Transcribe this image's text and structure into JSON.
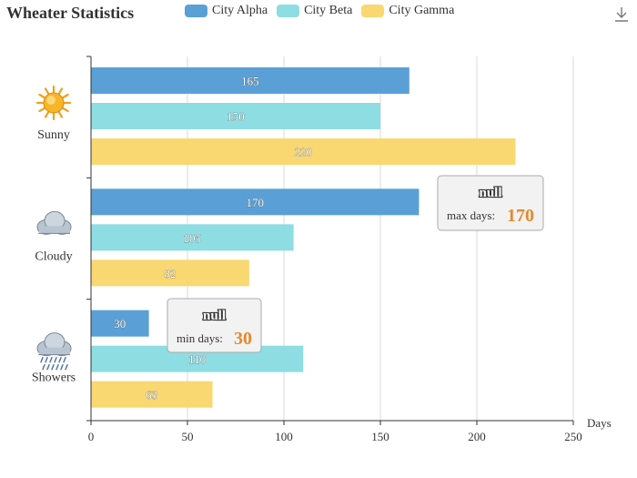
{
  "title": "Wheater Statistics",
  "toolbar": {
    "download_icon": "download-icon"
  },
  "legend": [
    {
      "name": "City Alpha",
      "color": "#5aa0d6"
    },
    {
      "name": "City Beta",
      "color": "#8ddde3"
    },
    {
      "name": "City Gamma",
      "color": "#f9d872"
    }
  ],
  "chart_data": {
    "type": "bar",
    "orientation": "horizontal",
    "categories": [
      "Sunny",
      "Cloudy",
      "Showers"
    ],
    "category_icons": [
      "sun-icon",
      "cloud-icon",
      "showers-icon"
    ],
    "series": [
      {
        "name": "City Alpha",
        "values": [
          165,
          170,
          30
        ]
      },
      {
        "name": "City Beta",
        "values": [
          150,
          105,
          110
        ]
      },
      {
        "name": "City Gamma",
        "values": [
          220,
          82,
          63
        ]
      }
    ],
    "xlabel": "Days",
    "xlim": [
      0,
      250
    ],
    "xticks": [
      0,
      50,
      100,
      150,
      200,
      250
    ],
    "grid": true,
    "legend_position": "top",
    "markers": [
      {
        "title": "null",
        "label": "max days:",
        "value": 170,
        "series": "City Alpha",
        "category": "Cloudy"
      },
      {
        "title": "null",
        "label": "min days:",
        "value": 30,
        "series": "City Alpha",
        "category": "Showers"
      }
    ]
  }
}
